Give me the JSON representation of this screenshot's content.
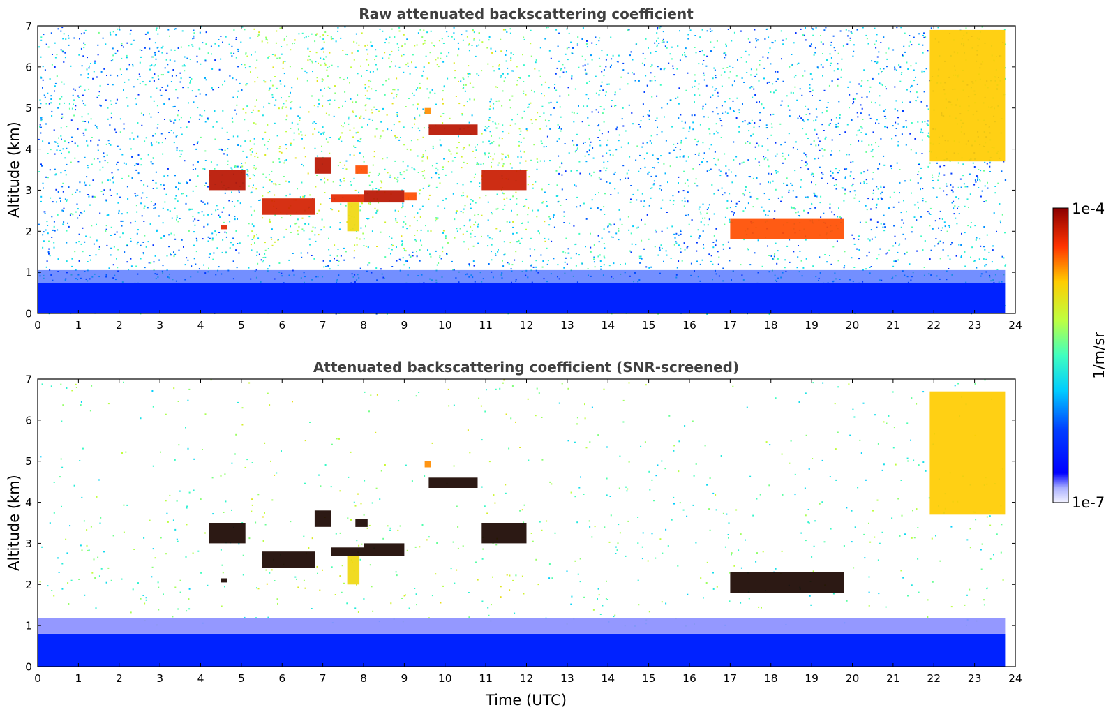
{
  "figure": {
    "colorbar": {
      "top_label": "1e-4",
      "bottom_label": "1e-7",
      "unit_label": "1/m/sr",
      "range": [
        1e-07,
        0.0001
      ],
      "scale": "log",
      "colormap": "jet"
    }
  },
  "chart_data": [
    {
      "type": "heatmap",
      "title": "Raw attenuated backscattering coefficient",
      "xlabel": "",
      "ylabel": "Altitude (km)",
      "xlim": [
        0,
        24
      ],
      "ylim": [
        0,
        7
      ],
      "xticks": [
        "0",
        "1",
        "2",
        "3",
        "4",
        "5",
        "6",
        "7",
        "8",
        "9",
        "10",
        "11",
        "12",
        "13",
        "14",
        "15",
        "16",
        "17",
        "18",
        "19",
        "20",
        "21",
        "22",
        "23",
        "24"
      ],
      "yticks": [
        "0",
        "1",
        "2",
        "3",
        "4",
        "5",
        "6",
        "7"
      ],
      "features": [
        {
          "name": "boundary-layer",
          "t_start": 0.0,
          "t_end": 23.75,
          "alt_low": 0.0,
          "alt_high": 0.75,
          "level": 0.18
        },
        {
          "name": "mid-cloud-a",
          "t_start": 4.2,
          "t_end": 5.1,
          "alt_low": 3.0,
          "alt_high": 3.5,
          "level": 0.95
        },
        {
          "name": "mid-cloud-b",
          "t_start": 5.5,
          "t_end": 6.8,
          "alt_low": 2.4,
          "alt_high": 2.8,
          "level": 0.92
        },
        {
          "name": "mid-cloud-c",
          "t_start": 6.8,
          "t_end": 7.2,
          "alt_low": 3.4,
          "alt_high": 3.8,
          "level": 0.95
        },
        {
          "name": "mid-cloud-d",
          "t_start": 7.2,
          "t_end": 8.0,
          "alt_low": 2.7,
          "alt_high": 2.9,
          "level": 0.9
        },
        {
          "name": "mid-cloud-e",
          "t_start": 8.0,
          "t_end": 9.0,
          "alt_low": 2.7,
          "alt_high": 3.0,
          "level": 0.95
        },
        {
          "name": "mid-cloud-f",
          "t_start": 7.8,
          "t_end": 8.1,
          "alt_low": 3.4,
          "alt_high": 3.6,
          "level": 0.85
        },
        {
          "name": "mid-cloud-g",
          "t_start": 9.0,
          "t_end": 9.3,
          "alt_low": 2.75,
          "alt_high": 2.95,
          "level": 0.85
        },
        {
          "name": "upper-cloud",
          "t_start": 9.6,
          "t_end": 10.8,
          "alt_low": 4.35,
          "alt_high": 4.6,
          "level": 0.95
        },
        {
          "name": "upper-cloud-spot",
          "t_start": 9.5,
          "t_end": 9.65,
          "alt_low": 4.85,
          "alt_high": 5.0,
          "level": 0.8
        },
        {
          "name": "mid-cloud-h",
          "t_start": 10.9,
          "t_end": 12.0,
          "alt_low": 3.0,
          "alt_high": 3.5,
          "level": 0.93
        },
        {
          "name": "aerosol-plume",
          "t_start": 7.6,
          "t_end": 7.9,
          "alt_low": 2.0,
          "alt_high": 2.7,
          "level": 0.72
        },
        {
          "name": "low-cloud-small",
          "t_start": 4.5,
          "t_end": 4.65,
          "alt_low": 2.05,
          "alt_high": 2.15,
          "level": 0.9
        },
        {
          "name": "small-cumulus",
          "t_start": 17.0,
          "t_end": 19.8,
          "alt_low": 1.8,
          "alt_high": 2.3,
          "level": 0.85
        },
        {
          "name": "cirrus-fallstreak",
          "t_start": 21.9,
          "t_end": 23.75,
          "alt_low": 3.7,
          "alt_high": 6.9,
          "level": 0.75
        }
      ]
    },
    {
      "type": "heatmap",
      "title": "Attenuated backscattering coefficient (SNR-screened)",
      "xlabel": "Time (UTC)",
      "ylabel": "Altitude (km)",
      "xlim": [
        0,
        24
      ],
      "ylim": [
        0,
        7
      ],
      "xticks": [
        "0",
        "1",
        "2",
        "3",
        "4",
        "5",
        "6",
        "7",
        "8",
        "9",
        "10",
        "11",
        "12",
        "13",
        "14",
        "15",
        "16",
        "17",
        "18",
        "19",
        "20",
        "21",
        "22",
        "23",
        "24"
      ],
      "yticks": [
        "0",
        "1",
        "2",
        "3",
        "4",
        "5",
        "6",
        "7"
      ],
      "features": [
        {
          "name": "boundary-layer",
          "t_start": 0.0,
          "t_end": 23.75,
          "alt_low": 0.0,
          "alt_high": 0.8,
          "level": 0.18
        },
        {
          "name": "mid-cloud-a",
          "t_start": 4.2,
          "t_end": 5.1,
          "alt_low": 3.0,
          "alt_high": 3.5,
          "level": 1.0
        },
        {
          "name": "mid-cloud-b",
          "t_start": 5.5,
          "t_end": 6.8,
          "alt_low": 2.4,
          "alt_high": 2.8,
          "level": 1.0
        },
        {
          "name": "mid-cloud-c",
          "t_start": 6.8,
          "t_end": 7.2,
          "alt_low": 3.4,
          "alt_high": 3.8,
          "level": 1.0
        },
        {
          "name": "mid-cloud-d",
          "t_start": 7.2,
          "t_end": 8.0,
          "alt_low": 2.7,
          "alt_high": 2.9,
          "level": 1.0
        },
        {
          "name": "mid-cloud-e",
          "t_start": 8.0,
          "t_end": 9.0,
          "alt_low": 2.7,
          "alt_high": 3.0,
          "level": 1.0
        },
        {
          "name": "mid-cloud-f",
          "t_start": 7.8,
          "t_end": 8.1,
          "alt_low": 3.4,
          "alt_high": 3.6,
          "level": 1.0
        },
        {
          "name": "upper-cloud",
          "t_start": 9.6,
          "t_end": 10.8,
          "alt_low": 4.35,
          "alt_high": 4.6,
          "level": 1.0
        },
        {
          "name": "upper-cloud-spot",
          "t_start": 9.5,
          "t_end": 9.65,
          "alt_low": 4.85,
          "alt_high": 5.0,
          "level": 0.8
        },
        {
          "name": "mid-cloud-h",
          "t_start": 10.9,
          "t_end": 12.0,
          "alt_low": 3.0,
          "alt_high": 3.5,
          "level": 1.0
        },
        {
          "name": "aerosol-plume",
          "t_start": 7.6,
          "t_end": 7.9,
          "alt_low": 2.0,
          "alt_high": 2.7,
          "level": 0.72
        },
        {
          "name": "low-cloud-small",
          "t_start": 4.5,
          "t_end": 4.65,
          "alt_low": 2.05,
          "alt_high": 2.15,
          "level": 1.0
        },
        {
          "name": "small-cumulus",
          "t_start": 17.0,
          "t_end": 19.8,
          "alt_low": 1.8,
          "alt_high": 2.3,
          "level": 1.0
        },
        {
          "name": "cirrus-fallstreak",
          "t_start": 21.9,
          "t_end": 23.75,
          "alt_low": 3.7,
          "alt_high": 6.7,
          "level": 0.75
        }
      ]
    }
  ]
}
